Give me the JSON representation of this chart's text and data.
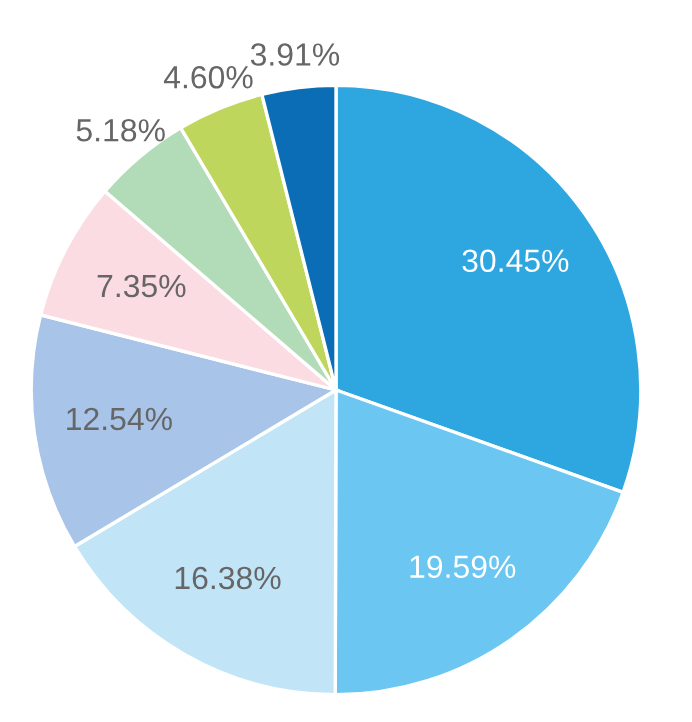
{
  "chart_data": {
    "type": "pie",
    "categories": [
      null,
      null,
      null,
      null,
      null,
      null,
      null,
      null
    ],
    "values": [
      30.45,
      19.59,
      16.38,
      12.54,
      7.35,
      5.18,
      4.6,
      3.91
    ],
    "colors": [
      "#2ea6e0",
      "#6bc6f1",
      "#c1e5f7",
      "#a8c4e8",
      "#fbdce2",
      "#b2dbb7",
      "#bfd65c",
      "#0b6db6"
    ],
    "value_labels": [
      "30.45%",
      "19.59%",
      "16.38%",
      "12.54%",
      "7.35%",
      "5.18%",
      "4.60%",
      "3.91%"
    ],
    "legend": false
  }
}
